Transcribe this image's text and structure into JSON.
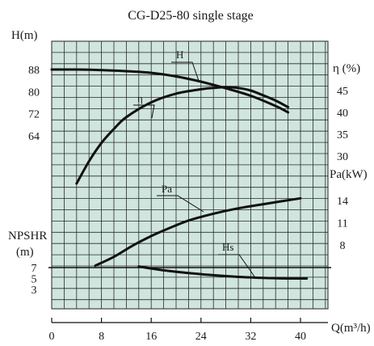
{
  "chart_data": {
    "type": "line",
    "title": "CG-D25-80 single stage",
    "xlabel": "Q(m³/h)",
    "xlim": [
      0,
      42
    ],
    "x_ticks": [
      0,
      8,
      16,
      24,
      32,
      40
    ],
    "grid": true,
    "background_color": "#cfe5dd",
    "grid_color": "#2b2b2b",
    "line_color": "#111111",
    "axes": {
      "head": {
        "label": "H(m)",
        "ticks": [
          64,
          72,
          80,
          88
        ]
      },
      "efficiency": {
        "label": "η (%)",
        "ticks": [
          30,
          35,
          40,
          45
        ]
      },
      "power": {
        "label": "Pa(kW)",
        "ticks": [
          8,
          11,
          14
        ]
      },
      "npshr": {
        "label_line1": "NPSHR",
        "label_line2": "(m)",
        "ticks": [
          3,
          5,
          7
        ]
      }
    },
    "series": [
      {
        "name": "H",
        "axis": "head",
        "x": [
          0,
          4,
          8,
          12,
          16,
          20,
          24,
          28,
          32,
          36,
          38
        ],
        "y": [
          88,
          88,
          87.8,
          87.4,
          86.8,
          85.5,
          83.6,
          81.2,
          78.5,
          74.8,
          72.5
        ]
      },
      {
        "name": "η",
        "axis": "efficiency",
        "x": [
          4,
          6,
          8,
          10,
          12,
          16,
          20,
          24,
          26,
          28,
          30,
          32,
          34,
          36,
          38
        ],
        "y": [
          23.7,
          28.8,
          33.0,
          36.2,
          38.9,
          42.3,
          44.3,
          45.3,
          45.6,
          45.8,
          45.6,
          45.0,
          43.9,
          42.7,
          41.2
        ]
      },
      {
        "name": "Pa",
        "axis": "power",
        "x": [
          7,
          10,
          13,
          16,
          19,
          22,
          25,
          28,
          31,
          34,
          37,
          40
        ],
        "y": [
          5.2,
          6.4,
          7.9,
          9.2,
          10.3,
          11.3,
          12.0,
          12.6,
          13.1,
          13.5,
          13.9,
          14.3
        ]
      },
      {
        "name": "Hs",
        "axis": "npshr",
        "x": [
          14,
          18,
          22,
          26,
          30,
          34,
          38,
          41
        ],
        "y": [
          7.2,
          6.5,
          6.0,
          5.6,
          5.3,
          5.1,
          5.0,
          5.0
        ]
      }
    ]
  }
}
